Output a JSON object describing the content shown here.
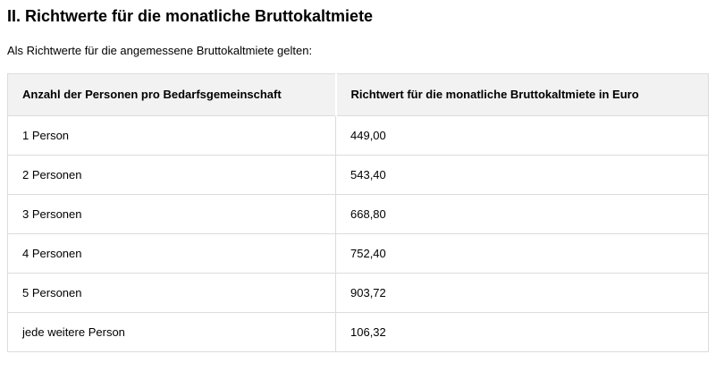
{
  "page": {
    "heading": "II. Richtwerte für die monatliche Bruttokaltmiete",
    "intro": "Als Richtwerte für die angemessene Bruttokaltmiete gelten:"
  },
  "table": {
    "columns": [
      "Anzahl der Personen pro Bedarfsgemeinschaft",
      "Richtwert für die monatliche Bruttokaltmiete in Euro"
    ],
    "rows": [
      {
        "label": "1 Person",
        "value": "449,00"
      },
      {
        "label": "2 Personen",
        "value": "543,40"
      },
      {
        "label": "3 Personen",
        "value": "668,80"
      },
      {
        "label": "4 Personen",
        "value": "752,40"
      },
      {
        "label": "5 Personen",
        "value": "903,72"
      },
      {
        "label": "jede weitere Person",
        "value": "106,32"
      }
    ]
  },
  "colors": {
    "header_bg": "#f2f2f2",
    "border": "#dcdcdc",
    "text": "#000000",
    "body_bg": "#ffffff"
  }
}
